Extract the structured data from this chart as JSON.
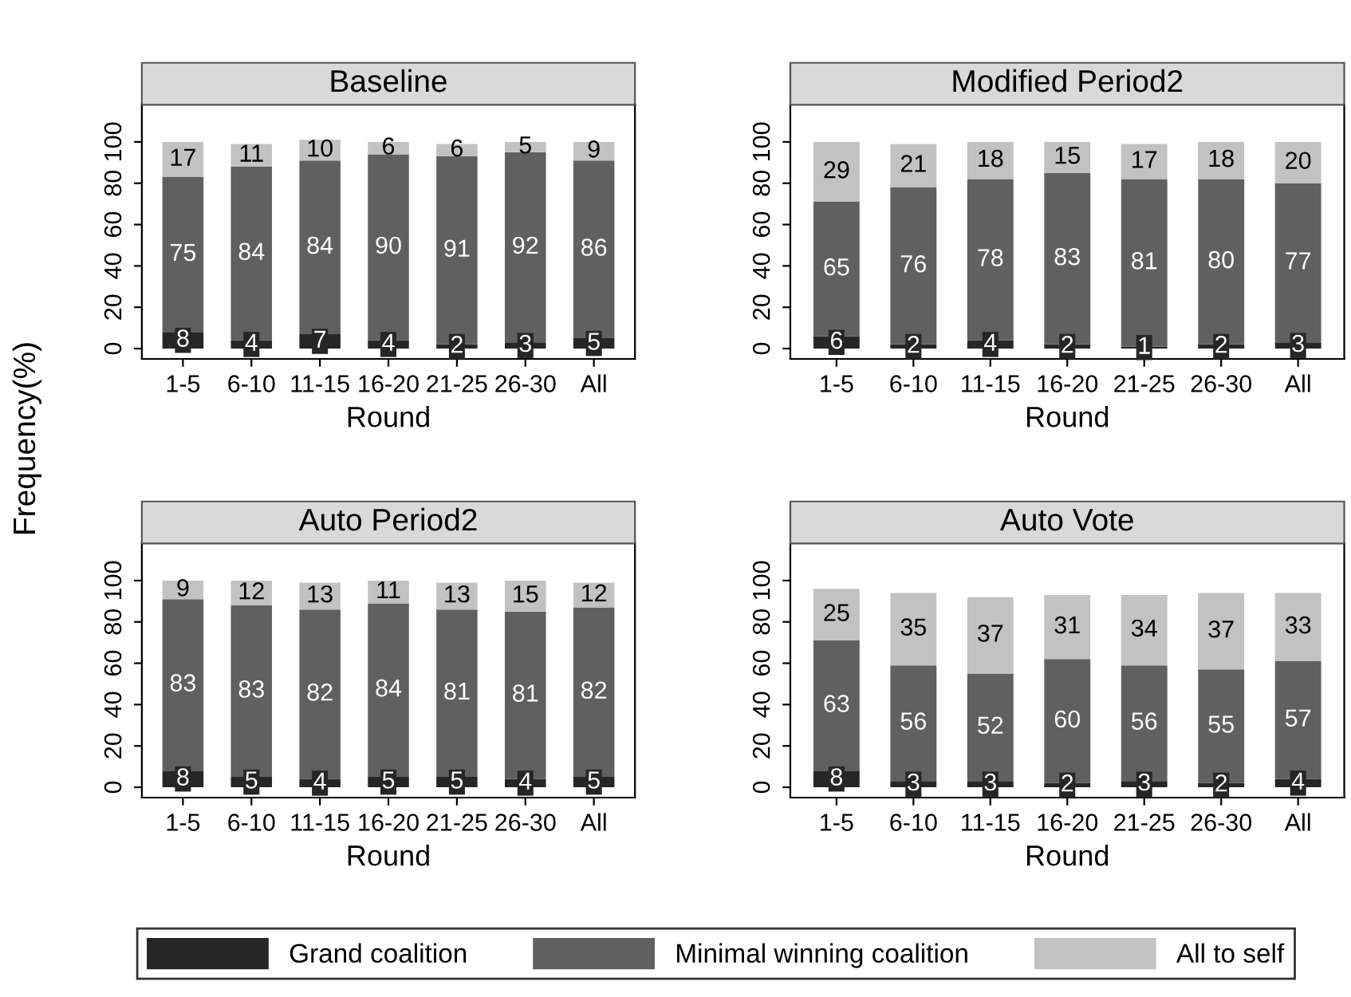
{
  "chart_data": [
    {
      "type": "bar",
      "title": "Baseline",
      "xlabel": "Round",
      "ylabel": "Frequency(%)",
      "stacked": true,
      "data_labels": true,
      "legend": "bottom",
      "grid": false,
      "ylim": [
        -5,
        118
      ],
      "yticks": [
        0,
        20,
        40,
        60,
        80,
        100
      ],
      "categories": [
        "1-5",
        "6-10",
        "11-15",
        "16-20",
        "21-25",
        "26-30",
        "All"
      ],
      "series": [
        {
          "name": "Grand coalition",
          "color": "#262626",
          "values": [
            8,
            4,
            7,
            4,
            2,
            3,
            5
          ]
        },
        {
          "name": "Minimal winning coalition",
          "color": "#606060",
          "values": [
            75,
            84,
            84,
            90,
            91,
            92,
            86
          ]
        },
        {
          "name": "All to self",
          "color": "#c2c2c2",
          "values": [
            17,
            11,
            10,
            6,
            6,
            5,
            9
          ]
        }
      ]
    },
    {
      "type": "bar",
      "title": "Modified Period2",
      "xlabel": "Round",
      "stacked": true,
      "data_labels": true,
      "grid": false,
      "ylim": [
        -5,
        118
      ],
      "yticks": [
        0,
        20,
        40,
        60,
        80,
        100
      ],
      "categories": [
        "1-5",
        "6-10",
        "11-15",
        "16-20",
        "21-25",
        "26-30",
        "All"
      ],
      "series": [
        {
          "color": "#262626",
          "values": [
            6,
            2,
            4,
            2,
            1,
            2,
            3
          ]
        },
        {
          "color": "#606060",
          "values": [
            65,
            76,
            78,
            83,
            81,
            80,
            77
          ]
        },
        {
          "color": "#c2c2c2",
          "values": [
            29,
            21,
            18,
            15,
            17,
            18,
            20
          ]
        }
      ]
    },
    {
      "type": "bar",
      "title": "Auto Period2",
      "xlabel": "Round",
      "stacked": true,
      "data_labels": true,
      "grid": false,
      "ylim": [
        -5,
        118
      ],
      "yticks": [
        0,
        20,
        40,
        60,
        80,
        100
      ],
      "categories": [
        "1-5",
        "6-10",
        "11-15",
        "16-20",
        "21-25",
        "26-30",
        "All"
      ],
      "series": [
        {
          "color": "#262626",
          "values": [
            8,
            5,
            4,
            5,
            5,
            4,
            5
          ]
        },
        {
          "color": "#606060",
          "values": [
            83,
            83,
            82,
            84,
            81,
            81,
            82
          ]
        },
        {
          "color": "#c2c2c2",
          "values": [
            9,
            12,
            13,
            11,
            13,
            15,
            12
          ]
        }
      ]
    },
    {
      "type": "bar",
      "title": "Auto Vote",
      "xlabel": "Round",
      "stacked": true,
      "data_labels": true,
      "grid": false,
      "ylim": [
        -5,
        118
      ],
      "yticks": [
        0,
        20,
        40,
        60,
        80,
        100
      ],
      "categories": [
        "1-5",
        "6-10",
        "11-15",
        "16-20",
        "21-25",
        "26-30",
        "All"
      ],
      "series": [
        {
          "color": "#262626",
          "values": [
            8,
            3,
            3,
            2,
            3,
            2,
            4
          ]
        },
        {
          "color": "#606060",
          "values": [
            63,
            56,
            52,
            60,
            56,
            55,
            57
          ]
        },
        {
          "color": "#c2c2c2",
          "values": [
            25,
            35,
            37,
            31,
            34,
            37,
            33
          ]
        }
      ]
    }
  ]
}
